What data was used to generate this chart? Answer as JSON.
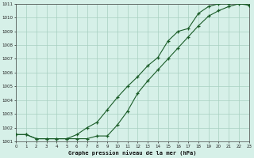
{
  "title": "Graphe pression niveau de la mer (hPa)",
  "bg_color": "#d6f0e8",
  "grid_color": "#a8cfc0",
  "line_color": "#1a5c28",
  "xlim": [
    0,
    23
  ],
  "ylim": [
    1001,
    1011
  ],
  "yticks": [
    1001,
    1002,
    1003,
    1004,
    1005,
    1006,
    1007,
    1008,
    1009,
    1010,
    1011
  ],
  "xticks": [
    0,
    1,
    2,
    3,
    4,
    5,
    6,
    7,
    8,
    9,
    10,
    11,
    12,
    13,
    14,
    15,
    16,
    17,
    18,
    19,
    20,
    21,
    22,
    23
  ],
  "series1_x": [
    0,
    1,
    2,
    3,
    4,
    5,
    6,
    7,
    8,
    9,
    10,
    11,
    12,
    13,
    14,
    15,
    16,
    17,
    18,
    19,
    20,
    21,
    22,
    23
  ],
  "series1_y": [
    1001.5,
    1001.5,
    1001.2,
    1001.2,
    1001.2,
    1001.2,
    1001.2,
    1001.2,
    1001.4,
    1001.4,
    1002.2,
    1003.2,
    1004.5,
    1005.4,
    1006.2,
    1007.0,
    1007.8,
    1008.6,
    1009.4,
    1010.1,
    1010.5,
    1010.8,
    1011.0,
    1010.9
  ],
  "series2_x": [
    0,
    1,
    2,
    3,
    4,
    5,
    6,
    7,
    8,
    9,
    10,
    11,
    12,
    13,
    14,
    15,
    16,
    17,
    18,
    19,
    20,
    21,
    22,
    23
  ],
  "series2_y": [
    1001.5,
    1001.5,
    1001.2,
    1001.2,
    1001.2,
    1001.2,
    1001.5,
    1002.0,
    1002.4,
    1003.3,
    1004.2,
    1005.0,
    1005.7,
    1006.5,
    1007.1,
    1008.3,
    1009.0,
    1009.2,
    1010.3,
    1010.8,
    1011.0,
    1011.0,
    1011.1,
    1010.9
  ]
}
